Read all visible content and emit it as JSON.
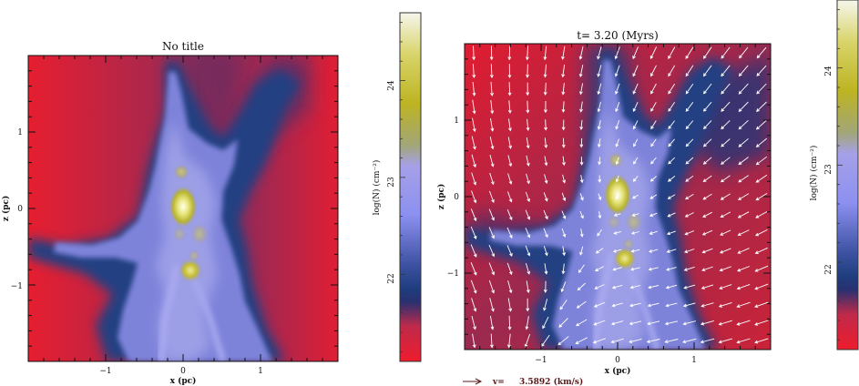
{
  "chart_data": [
    {
      "type": "heatmap",
      "title": "No title",
      "xlabel": "x (pc)",
      "ylabel": "z (pc)",
      "xlim": [
        -2,
        2
      ],
      "ylim": [
        -2,
        2
      ],
      "x_ticks": [
        "−1",
        "0",
        "1"
      ],
      "y_ticks": [
        "1",
        "0",
        "−1"
      ],
      "x_tick_values": [
        -1,
        0,
        1
      ],
      "y_tick_values": [
        1,
        0,
        -1
      ],
      "vectors": false,
      "colorbar": {
        "label": "log(N) (cm⁻²)",
        "ticks": [
          "24",
          "23",
          "22"
        ],
        "tick_values": [
          24,
          23,
          22
        ],
        "range": [
          21.1,
          24.7
        ]
      }
    },
    {
      "type": "heatmap",
      "title": "t= 3.20 (Myrs)",
      "xlabel": "x (pc)",
      "ylabel": "z (pc)",
      "xlim": [
        -2,
        2
      ],
      "ylim": [
        -2,
        2
      ],
      "x_ticks": [
        "−1",
        "0",
        "1"
      ],
      "y_ticks": [
        "1",
        "0",
        "−1"
      ],
      "x_tick_values": [
        -1,
        0,
        1
      ],
      "y_tick_values": [
        1,
        0,
        -1
      ],
      "vectors": true,
      "velocity_legend": {
        "label": "v=",
        "value": "3.5892 (km/s)"
      },
      "colorbar": {
        "label": "log(N) (cm⁻²)",
        "ticks": [
          "24",
          "23",
          "22"
        ],
        "tick_values": [
          24,
          23,
          22
        ],
        "range": [
          21.1,
          24.7
        ]
      }
    }
  ],
  "colors": {
    "low": "#ee1c2c",
    "mid_dark": "#1e3e7e",
    "mid": "#8c90f0",
    "high": "#c8c020",
    "peak": "#fffff0",
    "arrow": "#ffffff",
    "legend_arrow": "#5a1a1a"
  }
}
